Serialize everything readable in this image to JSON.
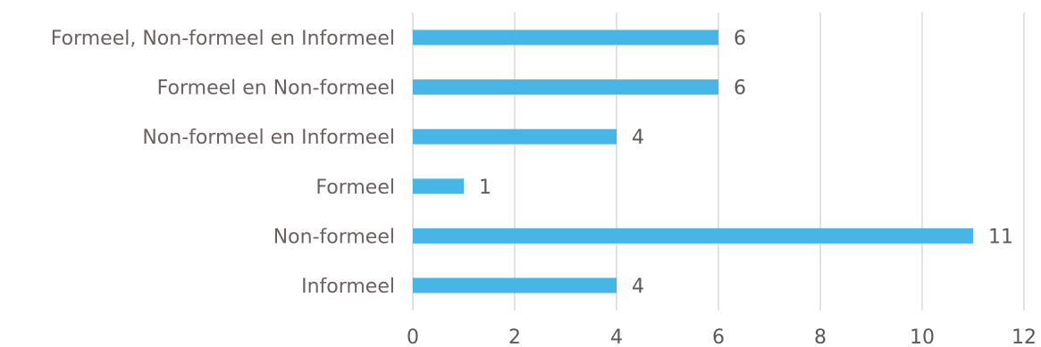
{
  "chart_data": {
    "type": "bar",
    "orientation": "horizontal",
    "title": "",
    "xlabel": "",
    "ylabel": "",
    "categories": [
      "Formeel, Non-formeel en Informeel",
      "Formeel en Non-formeel",
      "Non-formeel en Informeel",
      "Formeel",
      "Non-formeel",
      "Informeel"
    ],
    "values": [
      6,
      6,
      4,
      1,
      11,
      4
    ],
    "xlim": [
      0,
      12
    ],
    "xticks": [
      0,
      2,
      4,
      6,
      8,
      10,
      12
    ],
    "grid": "vertical",
    "legend": "none",
    "data_labels": true,
    "bar_color": "#47b5e6"
  }
}
